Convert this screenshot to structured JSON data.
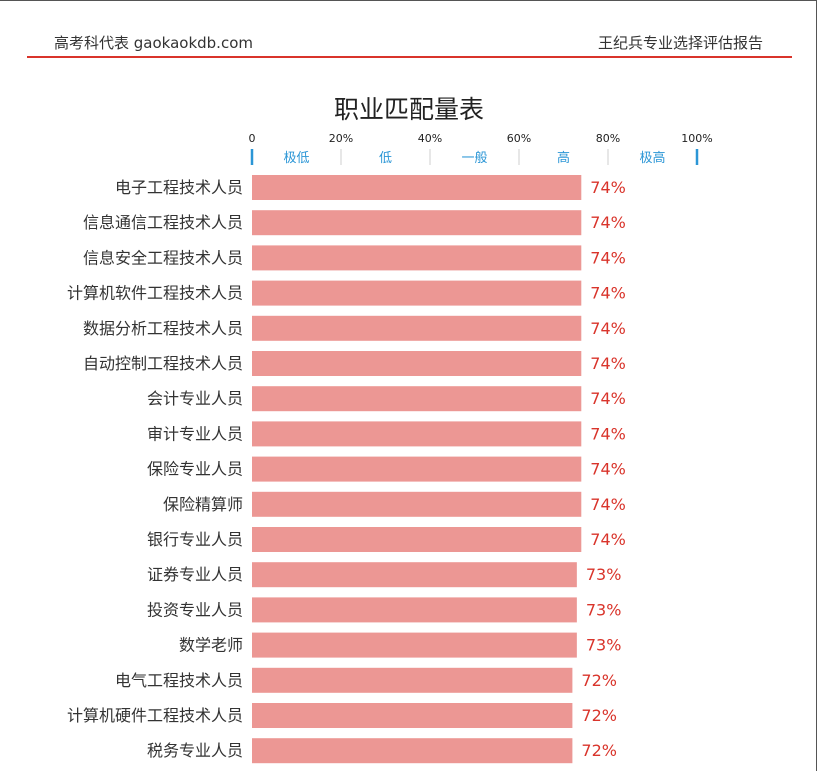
{
  "header": {
    "left": "高考科代表 gaokaokdb.com",
    "right": "王纪兵专业选择评估报告"
  },
  "colors": {
    "rule": "#d9342b",
    "bar": "#ec9794",
    "value_text": "#d9342b",
    "band_text": "#2b96d6",
    "band_tick": "#2b96d6"
  },
  "chart_data": {
    "type": "bar",
    "orientation": "horizontal",
    "title": "职业匹配量表",
    "xlim": [
      0,
      100
    ],
    "x_ticks": [
      "0",
      "20%",
      "40%",
      "60%",
      "80%",
      "100%"
    ],
    "x_tick_values": [
      0,
      20,
      40,
      60,
      80,
      100
    ],
    "bands": [
      "极低",
      "低",
      "一般",
      "高",
      "极高"
    ],
    "grid": false,
    "categories": [
      "电子工程技术人员",
      "信息通信工程技术人员",
      "信息安全工程技术人员",
      "计算机软件工程技术人员",
      "数据分析工程技术人员",
      "自动控制工程技术人员",
      "会计专业人员",
      "审计专业人员",
      "保险专业人员",
      "保险精算师",
      "银行专业人员",
      "证券专业人员",
      "投资专业人员",
      "数学老师",
      "电气工程技术人员",
      "计算机硬件工程技术人员",
      "税务专业人员"
    ],
    "values": [
      74,
      74,
      74,
      74,
      74,
      74,
      74,
      74,
      74,
      74,
      74,
      73,
      73,
      73,
      72,
      72,
      72
    ],
    "value_labels": [
      "74%",
      "74%",
      "74%",
      "74%",
      "74%",
      "74%",
      "74%",
      "74%",
      "74%",
      "74%",
      "74%",
      "73%",
      "73%",
      "73%",
      "72%",
      "72%",
      "72%"
    ]
  }
}
